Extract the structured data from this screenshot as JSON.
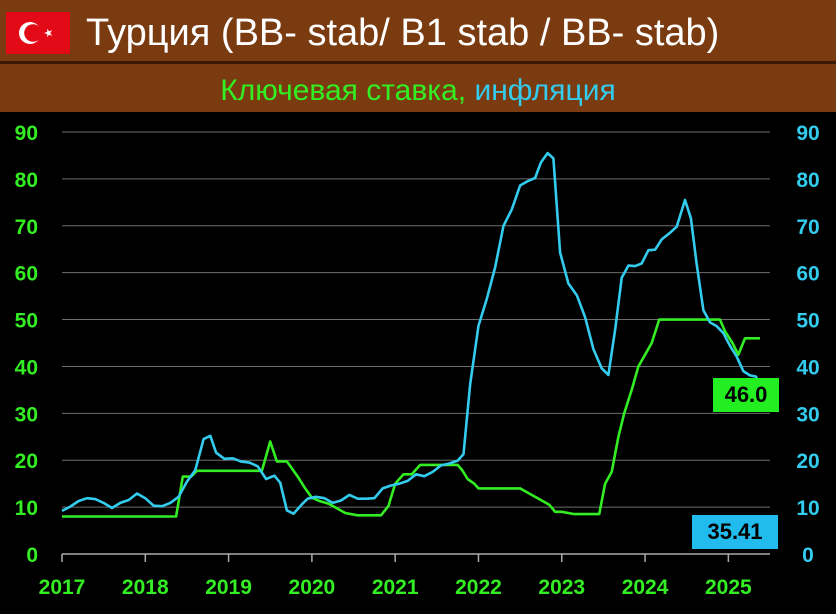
{
  "header": {
    "title": "Турция (BB- stab/ B1 stab / BB- stab)",
    "subtitle_rate": "Ключевая ставка,",
    "subtitle_inflation": "инфляция",
    "flag_icon": "turkey-flag-icon",
    "header_color": "#7a3b10"
  },
  "chart_data": {
    "type": "line",
    "title": "",
    "xlabel": "",
    "ylabel": "",
    "xlim": [
      2017.0,
      2025.5
    ],
    "ylim": [
      0,
      90
    ],
    "y_ticks": [
      0,
      10,
      20,
      30,
      40,
      50,
      60,
      70,
      80,
      90
    ],
    "x_ticks": [
      "2017",
      "2018",
      "2019",
      "2020",
      "2021",
      "2022",
      "2023",
      "2024",
      "2025"
    ],
    "left_axis_color": "#33ee22",
    "right_axis_color": "#33ccee",
    "grid": true,
    "series": [
      {
        "name": "Ключевая ставка",
        "color": "#33ee22",
        "last_label": "46.0",
        "points": [
          [
            2017.0,
            8
          ],
          [
            2018.0,
            8
          ],
          [
            2018.37,
            8
          ],
          [
            2018.45,
            16.5
          ],
          [
            2018.55,
            16.5
          ],
          [
            2018.62,
            17.75
          ],
          [
            2018.7,
            17.75
          ],
          [
            2019.0,
            17.75
          ],
          [
            2019.25,
            17.75
          ],
          [
            2019.4,
            17.75
          ],
          [
            2019.5,
            24
          ],
          [
            2019.58,
            19.75
          ],
          [
            2019.7,
            19.75
          ],
          [
            2019.83,
            16.5
          ],
          [
            2019.92,
            14
          ],
          [
            2020.0,
            12
          ],
          [
            2020.1,
            11.25
          ],
          [
            2020.2,
            10.75
          ],
          [
            2020.3,
            9.75
          ],
          [
            2020.4,
            8.75
          ],
          [
            2020.55,
            8.25
          ],
          [
            2020.75,
            8.25
          ],
          [
            2020.83,
            8.25
          ],
          [
            2020.92,
            10.25
          ],
          [
            2021.0,
            15
          ],
          [
            2021.1,
            17
          ],
          [
            2021.2,
            17
          ],
          [
            2021.3,
            19
          ],
          [
            2021.75,
            19
          ],
          [
            2021.8,
            18
          ],
          [
            2021.87,
            16
          ],
          [
            2021.95,
            15
          ],
          [
            2022.0,
            14
          ],
          [
            2022.5,
            14
          ],
          [
            2022.7,
            12
          ],
          [
            2022.85,
            10.5
          ],
          [
            2022.92,
            9
          ],
          [
            2023.0,
            9
          ],
          [
            2023.15,
            8.5
          ],
          [
            2023.45,
            8.5
          ],
          [
            2023.52,
            15
          ],
          [
            2023.6,
            17.5
          ],
          [
            2023.68,
            25
          ],
          [
            2023.75,
            30
          ],
          [
            2023.84,
            35
          ],
          [
            2023.92,
            40
          ],
          [
            2024.0,
            42.5
          ],
          [
            2024.08,
            45
          ],
          [
            2024.17,
            50
          ],
          [
            2024.3,
            50
          ],
          [
            2024.5,
            50
          ],
          [
            2024.7,
            50
          ],
          [
            2024.9,
            50
          ],
          [
            2024.96,
            47.5
          ],
          [
            2025.05,
            45
          ],
          [
            2025.12,
            42.5
          ],
          [
            2025.2,
            46
          ],
          [
            2025.38,
            46
          ]
        ]
      },
      {
        "name": "инфляция",
        "color": "#33ccee",
        "last_label": "35.41",
        "points": [
          [
            2017.0,
            9.2
          ],
          [
            2017.1,
            10.1
          ],
          [
            2017.2,
            11.3
          ],
          [
            2017.3,
            11.9
          ],
          [
            2017.4,
            11.7
          ],
          [
            2017.5,
            10.9
          ],
          [
            2017.6,
            9.8
          ],
          [
            2017.7,
            10.9
          ],
          [
            2017.8,
            11.5
          ],
          [
            2017.9,
            12.9
          ],
          [
            2018.0,
            11.9
          ],
          [
            2018.1,
            10.3
          ],
          [
            2018.2,
            10.2
          ],
          [
            2018.3,
            10.9
          ],
          [
            2018.4,
            12.2
          ],
          [
            2018.5,
            15.4
          ],
          [
            2018.6,
            17.9
          ],
          [
            2018.7,
            24.5
          ],
          [
            2018.78,
            25.2
          ],
          [
            2018.85,
            21.6
          ],
          [
            2018.95,
            20.3
          ],
          [
            2019.05,
            20.4
          ],
          [
            2019.15,
            19.7
          ],
          [
            2019.25,
            19.5
          ],
          [
            2019.35,
            18.7
          ],
          [
            2019.45,
            16
          ],
          [
            2019.55,
            16.7
          ],
          [
            2019.62,
            15.2
          ],
          [
            2019.7,
            9.3
          ],
          [
            2019.78,
            8.6
          ],
          [
            2019.88,
            10.6
          ],
          [
            2019.95,
            11.8
          ],
          [
            2020.05,
            12.2
          ],
          [
            2020.15,
            11.9
          ],
          [
            2020.25,
            10.9
          ],
          [
            2020.35,
            11.4
          ],
          [
            2020.45,
            12.6
          ],
          [
            2020.55,
            11.8
          ],
          [
            2020.65,
            11.8
          ],
          [
            2020.75,
            11.9
          ],
          [
            2020.85,
            14
          ],
          [
            2020.95,
            14.6
          ],
          [
            2021.05,
            15
          ],
          [
            2021.15,
            15.6
          ],
          [
            2021.25,
            17
          ],
          [
            2021.35,
            16.6
          ],
          [
            2021.45,
            17.5
          ],
          [
            2021.55,
            18.9
          ],
          [
            2021.65,
            19.3
          ],
          [
            2021.75,
            19.9
          ],
          [
            2021.82,
            21.3
          ],
          [
            2021.9,
            36.1
          ],
          [
            2022.0,
            48.7
          ],
          [
            2022.1,
            54.4
          ],
          [
            2022.2,
            61.1
          ],
          [
            2022.3,
            70
          ],
          [
            2022.4,
            73.5
          ],
          [
            2022.5,
            78.6
          ],
          [
            2022.6,
            79.6
          ],
          [
            2022.68,
            80.2
          ],
          [
            2022.75,
            83.5
          ],
          [
            2022.83,
            85.5
          ],
          [
            2022.9,
            84.4
          ],
          [
            2022.98,
            64.3
          ],
          [
            2023.08,
            57.7
          ],
          [
            2023.18,
            55.2
          ],
          [
            2023.28,
            50.5
          ],
          [
            2023.38,
            43.7
          ],
          [
            2023.48,
            39.6
          ],
          [
            2023.56,
            38.2
          ],
          [
            2023.64,
            47.8
          ],
          [
            2023.72,
            58.9
          ],
          [
            2023.8,
            61.5
          ],
          [
            2023.88,
            61.4
          ],
          [
            2023.96,
            61.98
          ],
          [
            2024.04,
            64.8
          ],
          [
            2024.12,
            64.9
          ],
          [
            2024.2,
            67.1
          ],
          [
            2024.3,
            68.5
          ],
          [
            2024.38,
            69.8
          ],
          [
            2024.48,
            75.5
          ],
          [
            2024.55,
            71.6
          ],
          [
            2024.62,
            61.8
          ],
          [
            2024.7,
            51.97
          ],
          [
            2024.78,
            49.4
          ],
          [
            2024.86,
            48.6
          ],
          [
            2024.94,
            47.1
          ],
          [
            2025.02,
            44.4
          ],
          [
            2025.1,
            42.1
          ],
          [
            2025.18,
            39
          ],
          [
            2025.26,
            38.1
          ],
          [
            2025.33,
            37.86
          ],
          [
            2025.4,
            35.41
          ]
        ]
      }
    ]
  }
}
